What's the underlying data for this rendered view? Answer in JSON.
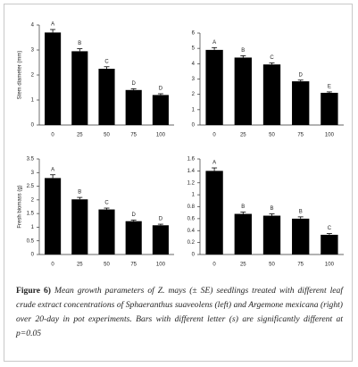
{
  "chart_data": [
    {
      "type": "bar",
      "y_label": "Stem diameter (mm)",
      "categories": [
        "0",
        "25",
        "50",
        "75",
        "100"
      ],
      "values": [
        3.7,
        2.95,
        2.25,
        1.4,
        1.2
      ],
      "errors": [
        0.12,
        0.1,
        0.08,
        0.05,
        0.05
      ],
      "letters": [
        "A",
        "B",
        "C",
        "D",
        "D"
      ],
      "color": "#000000",
      "ylim": [
        0,
        4
      ],
      "yticks": [
        0,
        1,
        2,
        3,
        4
      ]
    },
    {
      "type": "bar",
      "categories": [
        "0",
        "25",
        "50",
        "75",
        "100"
      ],
      "values": [
        4.9,
        4.4,
        3.95,
        2.85,
        2.1
      ],
      "errors": [
        0.15,
        0.12,
        0.1,
        0.08,
        0.06
      ],
      "letters": [
        "A",
        "B",
        "C",
        "D",
        "E"
      ],
      "color": "#000000",
      "ylim": [
        0,
        6
      ],
      "yticks": [
        0,
        1,
        2,
        3,
        4,
        5,
        6
      ]
    },
    {
      "type": "bar",
      "y_label": "Fresh biomass (g)",
      "categories": [
        "0",
        "25",
        "50",
        "75",
        "100"
      ],
      "values": [
        2.8,
        2.02,
        1.65,
        1.22,
        1.07
      ],
      "errors": [
        0.12,
        0.07,
        0.05,
        0.04,
        0.04
      ],
      "letters": [
        "A",
        "B",
        "C",
        "D",
        "D"
      ],
      "color": "#000000",
      "ylim": [
        0,
        3.5
      ],
      "yticks": [
        0,
        0.5,
        1,
        1.5,
        2,
        2.5,
        3,
        3.5
      ]
    },
    {
      "type": "bar",
      "categories": [
        "0",
        "25",
        "50",
        "75",
        "100"
      ],
      "values": [
        1.4,
        0.68,
        0.65,
        0.6,
        0.33
      ],
      "errors": [
        0.05,
        0.03,
        0.03,
        0.03,
        0.02
      ],
      "letters": [
        "A",
        "B",
        "B",
        "B",
        "C"
      ],
      "color": "#000000",
      "ylim": [
        0,
        1.6
      ],
      "yticks": [
        0,
        0.2,
        0.4,
        0.6,
        0.8,
        1,
        1.2,
        1.4,
        1.6
      ]
    }
  ],
  "caption": {
    "label": "Figure 6)",
    "text": "Mean growth parameters of Z. mays (± SE) seedlings treated with different leaf crude extract concentrations of Sphaeranthus suaveolens (left) and Argemone mexicana (right) over 20-day in pot experiments. Bars with different letter (s) are significantly different at p=0.05"
  }
}
